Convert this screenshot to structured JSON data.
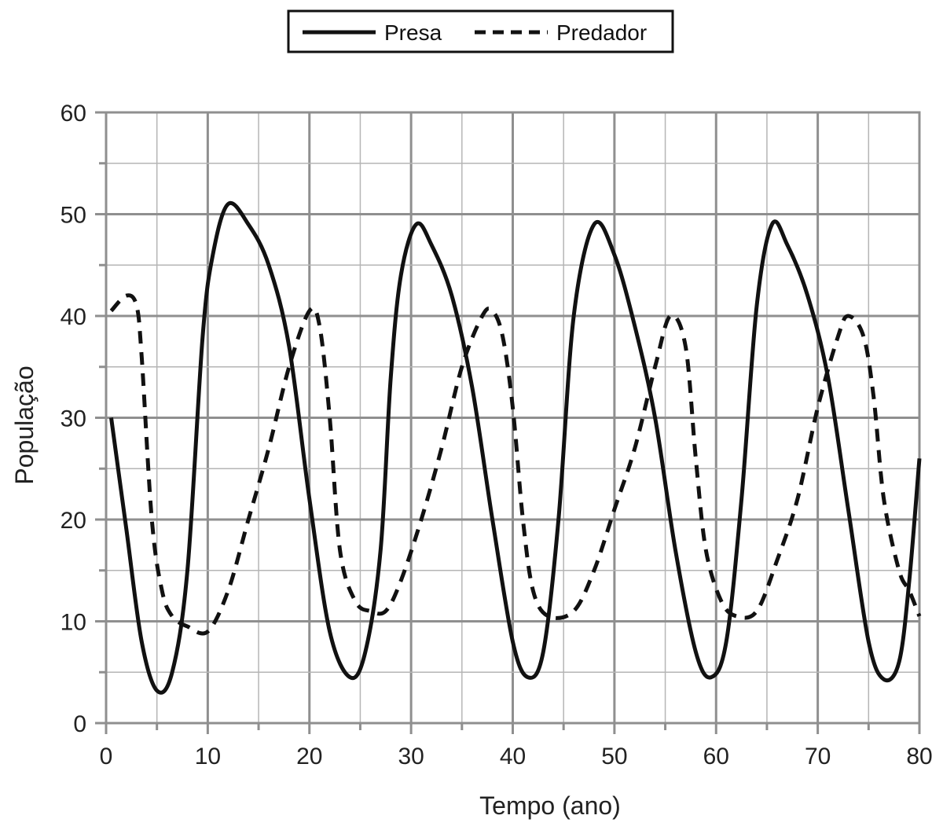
{
  "chart_data": {
    "type": "line",
    "xlabel": "Tempo (ano)",
    "ylabel": "População",
    "xlim": [
      0,
      80
    ],
    "ylim": [
      0,
      60
    ],
    "x_ticks": [
      0,
      10,
      20,
      30,
      40,
      50,
      60,
      70,
      80
    ],
    "y_ticks": [
      0,
      10,
      20,
      30,
      40,
      50,
      60
    ],
    "x_tick_labels": [
      "0",
      "10",
      "20",
      "30",
      "40",
      "50",
      "60",
      "70",
      "80"
    ],
    "y_tick_labels": [
      "0",
      "10",
      "20",
      "30",
      "40",
      "50",
      "60"
    ],
    "grid": true,
    "legend_position": "top-center",
    "series": [
      {
        "name": "Presa",
        "style": "solid",
        "color": "#111111",
        "points": [
          [
            0.5,
            30
          ],
          [
            2,
            19
          ],
          [
            3.5,
            8
          ],
          [
            5,
            3.2
          ],
          [
            6.5,
            5
          ],
          [
            8,
            15
          ],
          [
            9.5,
            38
          ],
          [
            10.5,
            46
          ],
          [
            12,
            51
          ],
          [
            14,
            49
          ],
          [
            16,
            45
          ],
          [
            18,
            37
          ],
          [
            20,
            22
          ],
          [
            22,
            9
          ],
          [
            24,
            4.5
          ],
          [
            25.5,
            7
          ],
          [
            27,
            17
          ],
          [
            28,
            34
          ],
          [
            29,
            44
          ],
          [
            30.5,
            49
          ],
          [
            32,
            47
          ],
          [
            34,
            42
          ],
          [
            36,
            33
          ],
          [
            38,
            20
          ],
          [
            40,
            8
          ],
          [
            41.5,
            4.5
          ],
          [
            43,
            7
          ],
          [
            44.5,
            20
          ],
          [
            46,
            40
          ],
          [
            48,
            49
          ],
          [
            50,
            46
          ],
          [
            52,
            39
          ],
          [
            54,
            30
          ],
          [
            56,
            17
          ],
          [
            58,
            7
          ],
          [
            59.5,
            4.5
          ],
          [
            61,
            8
          ],
          [
            62.5,
            22
          ],
          [
            64,
            41
          ],
          [
            65.5,
            49
          ],
          [
            67,
            47
          ],
          [
            69,
            42
          ],
          [
            71,
            34
          ],
          [
            73,
            21
          ],
          [
            75,
            8
          ],
          [
            76.5,
            4.3
          ],
          [
            78,
            6
          ],
          [
            79,
            14
          ],
          [
            80,
            26
          ]
        ]
      },
      {
        "name": "Predador",
        "style": "dashed",
        "color": "#111111",
        "points": [
          [
            0.5,
            40.5
          ],
          [
            2,
            42
          ],
          [
            3,
            41
          ],
          [
            3.5,
            36
          ],
          [
            4.5,
            20
          ],
          [
            5.5,
            13
          ],
          [
            6.5,
            10.5
          ],
          [
            8,
            9.5
          ],
          [
            10,
            9
          ],
          [
            12,
            13
          ],
          [
            14,
            20
          ],
          [
            16,
            27
          ],
          [
            18,
            35
          ],
          [
            20,
            40.5
          ],
          [
            21,
            39
          ],
          [
            22,
            30
          ],
          [
            23,
            17
          ],
          [
            24.5,
            12
          ],
          [
            26,
            11
          ],
          [
            27.5,
            11
          ],
          [
            29,
            14
          ],
          [
            31,
            20
          ],
          [
            33,
            27
          ],
          [
            35,
            35
          ],
          [
            37,
            40
          ],
          [
            38,
            40.5
          ],
          [
            39,
            38
          ],
          [
            40,
            31
          ],
          [
            41,
            20
          ],
          [
            42,
            13
          ],
          [
            43.5,
            10.5
          ],
          [
            46,
            11
          ],
          [
            48,
            15
          ],
          [
            50,
            21
          ],
          [
            52,
            27
          ],
          [
            54,
            35
          ],
          [
            55.5,
            40
          ],
          [
            57,
            37
          ],
          [
            58,
            26
          ],
          [
            59,
            17
          ],
          [
            60.5,
            12
          ],
          [
            62,
            10.5
          ],
          [
            64,
            11
          ],
          [
            66,
            16
          ],
          [
            68,
            22
          ],
          [
            70,
            31
          ],
          [
            72,
            38
          ],
          [
            73,
            40
          ],
          [
            74.5,
            38
          ],
          [
            75.5,
            32
          ],
          [
            76.5,
            22
          ],
          [
            78,
            15
          ],
          [
            79,
            13
          ],
          [
            80,
            10.5
          ]
        ]
      }
    ]
  }
}
